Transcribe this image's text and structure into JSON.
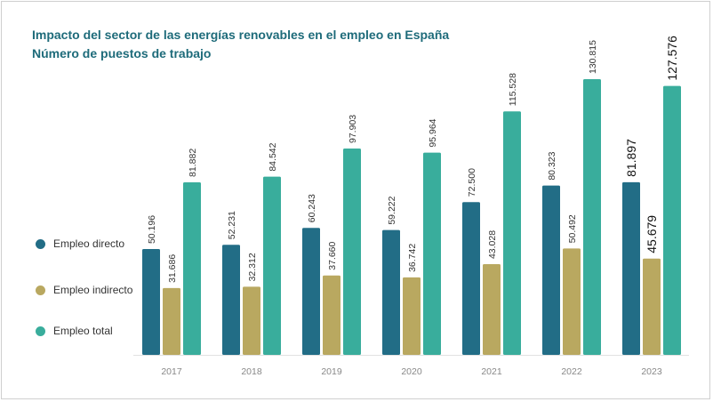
{
  "title_line1": "Impacto del sector de las energías renovables en el empleo en España",
  "title_line2": "Número de puestos de trabajo",
  "legend": [
    {
      "label": "Empleo directo",
      "color": "#226d86"
    },
    {
      "label": "Empleo indirecto",
      "color": "#b9a860"
    },
    {
      "label": "Empleo total",
      "color": "#39ad9c"
    }
  ],
  "chart_data": {
    "type": "bar",
    "title": "Impacto del sector de las energías renovables en el empleo en España",
    "subtitle": "Número de puestos de trabajo",
    "xlabel": "",
    "ylabel": "",
    "categories": [
      "2017",
      "2018",
      "2019",
      "2020",
      "2021",
      "2022",
      "2023"
    ],
    "series": [
      {
        "name": "Empleo directo",
        "color": "#226d86",
        "values": [
          50196,
          52231,
          60243,
          59222,
          72500,
          80323,
          81897
        ],
        "labels": [
          "50.196",
          "52.231",
          "60.243",
          "59.222",
          "72.500",
          "80.323",
          "81.897"
        ]
      },
      {
        "name": "Empleo indirecto",
        "color": "#b9a860",
        "values": [
          31686,
          32312,
          37660,
          36742,
          43028,
          50492,
          45679
        ],
        "labels": [
          "31.686",
          "32.312",
          "37.660",
          "36.742",
          "43.028",
          "50.492",
          "45.679"
        ]
      },
      {
        "name": "Empleo total",
        "color": "#39ad9c",
        "values": [
          81882,
          84542,
          97903,
          95964,
          115528,
          130815,
          127576
        ],
        "labels": [
          "81.882",
          "84.542",
          "97.903",
          "95.964",
          "115.528",
          "130.815",
          "127.576"
        ]
      }
    ],
    "ylim": [
      0,
      130815
    ],
    "grid": false,
    "legend_position": "left",
    "highlight_category": "2023"
  }
}
